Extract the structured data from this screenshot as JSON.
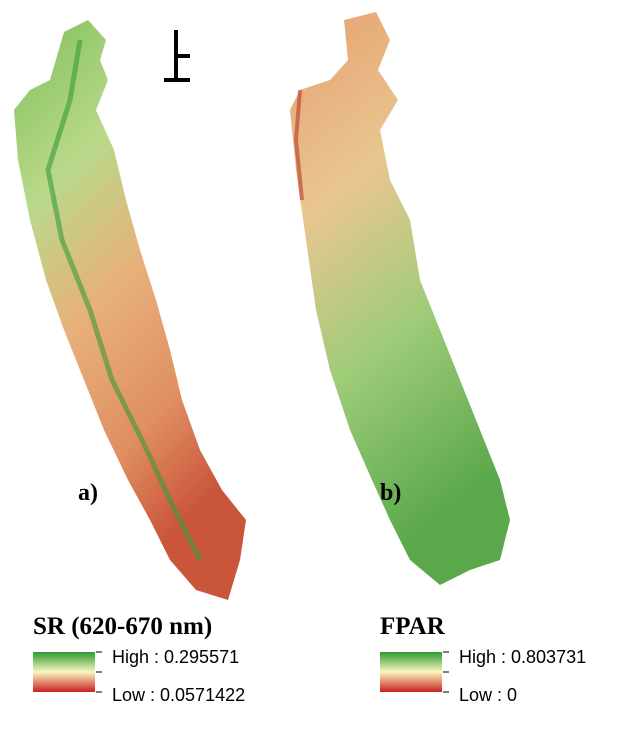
{
  "panels": [
    {
      "label": "a)",
      "legend": {
        "title": "SR (620-670 nm)",
        "high": "High : 0.295571",
        "low": "Low : 0.0571422"
      }
    },
    {
      "label": "b)",
      "legend": {
        "title": "FPAR",
        "high": "High : 0.803731",
        "low": "Low : 0"
      }
    }
  ]
}
